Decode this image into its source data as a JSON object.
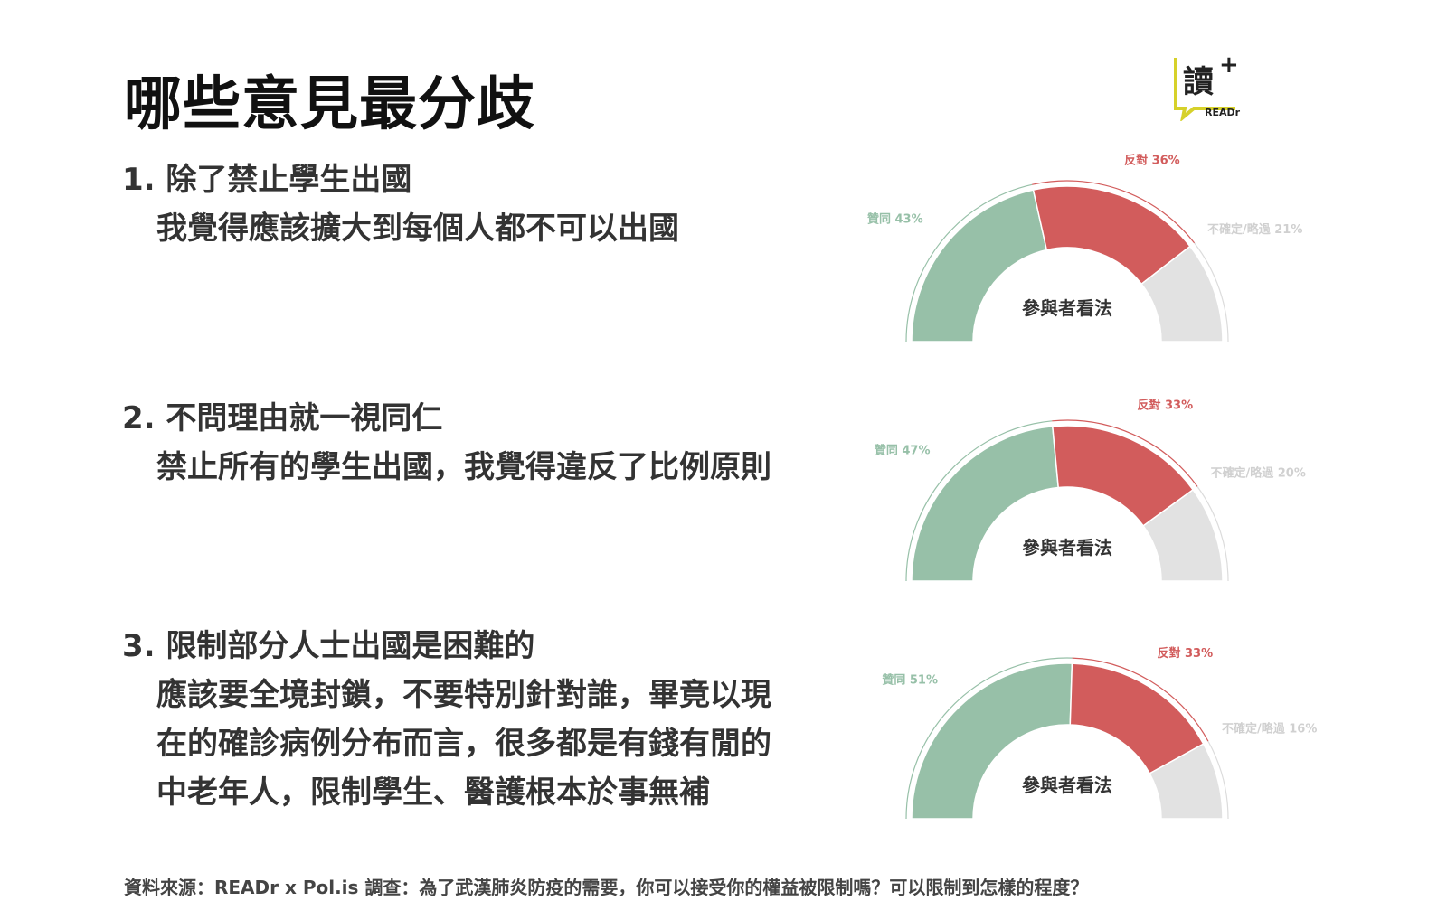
{
  "slide": {
    "title": "哪些意見最分歧",
    "logo": {
      "text": "READr",
      "wordmark": "讀+",
      "accent": "#d6d12a"
    },
    "source": "資料來源：READr x Pol.is 調查：為了武漢肺炎防疫的需要，你可以接受你的權益被限制嗎？可以限制到怎樣的程度？"
  },
  "questions": [
    {
      "number": "1.",
      "lines": [
        "除了禁止學生出國",
        "我覺得應該擴大到每個人都不可以出國"
      ]
    },
    {
      "number": "2.",
      "lines": [
        "不問理由就一視同仁",
        "禁止所有的學生出國，我覺得違反了比例原則"
      ]
    },
    {
      "number": "3.",
      "lines": [
        "限制部分人士出國是困難的",
        "應該要全境封鎖，不要特別針對誰，畢竟以現",
        "在的確診病例分布而言，很多都是有錢有閒的",
        "中老年人，限制學生、醫護根本於事無補"
      ]
    }
  ],
  "chart_data": [
    {
      "type": "pie",
      "center_label": "參與者看法",
      "slices": [
        {
          "label": "贊同 43%",
          "value": 43,
          "color": "#97c0a8"
        },
        {
          "label": "反對 36%",
          "value": 36,
          "color": "#d25c5c"
        },
        {
          "label": "不確定/略過 21%",
          "value": 21,
          "color": "#e2e2e2"
        }
      ]
    },
    {
      "type": "pie",
      "center_label": "參與者看法",
      "slices": [
        {
          "label": "贊同 47%",
          "value": 47,
          "color": "#97c0a8"
        },
        {
          "label": "反對 33%",
          "value": 33,
          "color": "#d25c5c"
        },
        {
          "label": "不確定/略過 20%",
          "value": 20,
          "color": "#e2e2e2"
        }
      ]
    },
    {
      "type": "pie",
      "center_label": "參與者看法",
      "slices": [
        {
          "label": "贊同 51%",
          "value": 51,
          "color": "#97c0a8"
        },
        {
          "label": "反對 33%",
          "value": 33,
          "color": "#d25c5c"
        },
        {
          "label": "不確定/略過 16%",
          "value": 16,
          "color": "#e2e2e2"
        }
      ]
    }
  ]
}
